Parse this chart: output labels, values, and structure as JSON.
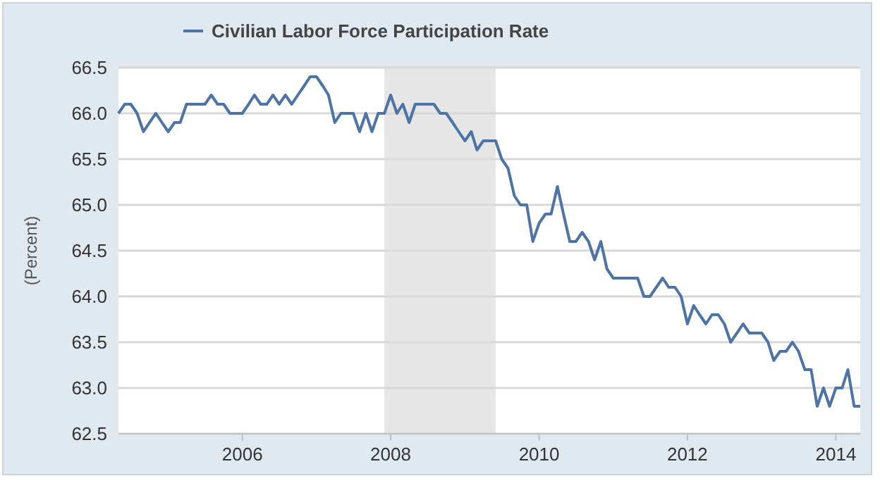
{
  "chart_data": {
    "type": "line",
    "ylabel": "(Percent)",
    "legend": "top left",
    "grid": "y",
    "marker": "none",
    "line_style": "solid",
    "x": [
      "2004-05",
      "2004-06",
      "2004-07",
      "2004-08",
      "2004-09",
      "2004-10",
      "2004-11",
      "2004-12",
      "2005-01",
      "2005-02",
      "2005-03",
      "2005-04",
      "2005-05",
      "2005-06",
      "2005-07",
      "2005-08",
      "2005-09",
      "2005-10",
      "2005-11",
      "2005-12",
      "2006-01",
      "2006-02",
      "2006-03",
      "2006-04",
      "2006-05",
      "2006-06",
      "2006-07",
      "2006-08",
      "2006-09",
      "2006-10",
      "2006-11",
      "2006-12",
      "2007-01",
      "2007-02",
      "2007-03",
      "2007-04",
      "2007-05",
      "2007-06",
      "2007-07",
      "2007-08",
      "2007-09",
      "2007-10",
      "2007-11",
      "2007-12",
      "2008-01",
      "2008-02",
      "2008-03",
      "2008-04",
      "2008-05",
      "2008-06",
      "2008-07",
      "2008-08",
      "2008-09",
      "2008-10",
      "2008-11",
      "2008-12",
      "2009-01",
      "2009-02",
      "2009-03",
      "2009-04",
      "2009-05",
      "2009-06",
      "2009-07",
      "2009-08",
      "2009-09",
      "2009-10",
      "2009-11",
      "2009-12",
      "2010-01",
      "2010-02",
      "2010-03",
      "2010-04",
      "2010-05",
      "2010-06",
      "2010-07",
      "2010-08",
      "2010-09",
      "2010-10",
      "2010-11",
      "2010-12",
      "2011-01",
      "2011-02",
      "2011-03",
      "2011-04",
      "2011-05",
      "2011-06",
      "2011-07",
      "2011-08",
      "2011-09",
      "2011-10",
      "2011-11",
      "2011-12",
      "2012-01",
      "2012-02",
      "2012-03",
      "2012-04",
      "2012-05",
      "2012-06",
      "2012-07",
      "2012-08",
      "2012-09",
      "2012-10",
      "2012-11",
      "2012-12",
      "2013-01",
      "2013-02",
      "2013-03",
      "2013-04",
      "2013-05",
      "2013-06",
      "2013-07",
      "2013-08",
      "2013-09",
      "2013-10",
      "2013-11",
      "2013-12",
      "2014-01",
      "2014-02",
      "2014-03",
      "2014-04",
      "2014-05"
    ],
    "series": [
      {
        "name": "Civilian Labor Force Participation Rate",
        "color": "#4e74a6",
        "values": [
          66.0,
          66.1,
          66.1,
          66.0,
          65.8,
          65.9,
          66.0,
          65.9,
          65.8,
          65.9,
          65.9,
          66.1,
          66.1,
          66.1,
          66.1,
          66.2,
          66.1,
          66.1,
          66.0,
          66.0,
          66.0,
          66.1,
          66.2,
          66.1,
          66.1,
          66.2,
          66.1,
          66.2,
          66.1,
          66.2,
          66.3,
          66.4,
          66.4,
          66.3,
          66.2,
          65.9,
          66.0,
          66.0,
          66.0,
          65.8,
          66.0,
          65.8,
          66.0,
          66.0,
          66.2,
          66.0,
          66.1,
          65.9,
          66.1,
          66.1,
          66.1,
          66.1,
          66.0,
          66.0,
          65.9,
          65.8,
          65.7,
          65.8,
          65.6,
          65.7,
          65.7,
          65.7,
          65.5,
          65.4,
          65.1,
          65.0,
          65.0,
          64.6,
          64.8,
          64.9,
          64.9,
          65.2,
          64.9,
          64.6,
          64.6,
          64.7,
          64.6,
          64.4,
          64.6,
          64.3,
          64.2,
          64.2,
          64.2,
          64.2,
          64.2,
          64.0,
          64.0,
          64.1,
          64.2,
          64.1,
          64.1,
          64.0,
          63.7,
          63.9,
          63.8,
          63.7,
          63.8,
          63.8,
          63.7,
          63.5,
          63.6,
          63.7,
          63.6,
          63.6,
          63.6,
          63.5,
          63.3,
          63.4,
          63.4,
          63.5,
          63.4,
          63.2,
          63.2,
          62.8,
          63.0,
          62.8,
          63.0,
          63.0,
          63.2,
          62.8,
          62.8
        ]
      }
    ],
    "xlim": [
      "2004-05",
      "2014-05"
    ],
    "xticks": [
      {
        "value": "2006",
        "label": "2006"
      },
      {
        "value": "2008",
        "label": "2008"
      },
      {
        "value": "2010",
        "label": "2010"
      },
      {
        "value": "2012",
        "label": "2012"
      },
      {
        "value": "2014",
        "label": "2014"
      }
    ],
    "ylim": [
      62.5,
      66.5
    ],
    "yticks": [
      {
        "value": 62.5,
        "label": "62.5"
      },
      {
        "value": 63,
        "label": "63.0"
      },
      {
        "value": 63.5,
        "label": "63.5"
      },
      {
        "value": 64,
        "label": "64.0"
      },
      {
        "value": 64.5,
        "label": "64.5"
      },
      {
        "value": 65,
        "label": "65.0"
      },
      {
        "value": 65.5,
        "label": "65.5"
      },
      {
        "value": 66,
        "label": "66.0"
      },
      {
        "value": 66.5,
        "label": "66.5"
      }
    ],
    "bands": [
      {
        "axis": "x",
        "from": "2007-12",
        "to": "2009-06",
        "color": "#e6e6e6"
      }
    ]
  }
}
